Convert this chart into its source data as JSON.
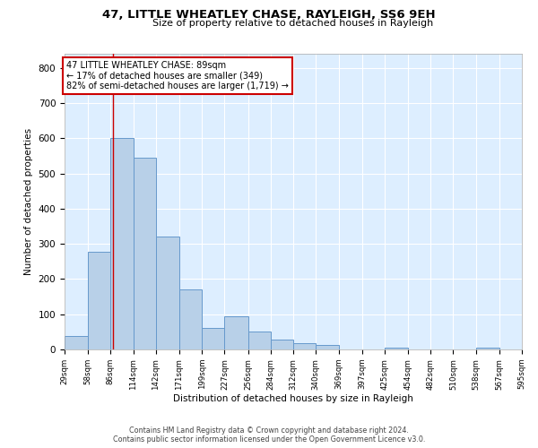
{
  "title": "47, LITTLE WHEATLEY CHASE, RAYLEIGH, SS6 9EH",
  "subtitle": "Size of property relative to detached houses in Rayleigh",
  "xlabel": "Distribution of detached houses by size in Rayleigh",
  "ylabel": "Number of detached properties",
  "footer_line1": "Contains HM Land Registry data © Crown copyright and database right 2024.",
  "footer_line2": "Contains public sector information licensed under the Open Government Licence v3.0.",
  "bar_color": "#b8d0e8",
  "bar_edge_color": "#6699cc",
  "background_color": "#ddeeff",
  "grid_color": "#ffffff",
  "bins": [
    29,
    58,
    86,
    114,
    142,
    171,
    199,
    227,
    256,
    284,
    312,
    340,
    369,
    397,
    425,
    454,
    482,
    510,
    538,
    567,
    595
  ],
  "values": [
    38,
    278,
    600,
    545,
    320,
    170,
    60,
    95,
    50,
    28,
    18,
    14,
    0,
    0,
    5,
    0,
    0,
    0,
    5,
    0
  ],
  "property_size": 89,
  "annotation_line1": "47 LITTLE WHEATLEY CHASE: 89sqm",
  "annotation_line2": "← 17% of detached houses are smaller (349)",
  "annotation_line3": "82% of semi-detached houses are larger (1,719) →",
  "annotation_box_color": "#ffffff",
  "annotation_border_color": "#cc0000",
  "redline_color": "#cc0000",
  "ylim": [
    0,
    840
  ],
  "yticks": [
    0,
    100,
    200,
    300,
    400,
    500,
    600,
    700,
    800
  ]
}
